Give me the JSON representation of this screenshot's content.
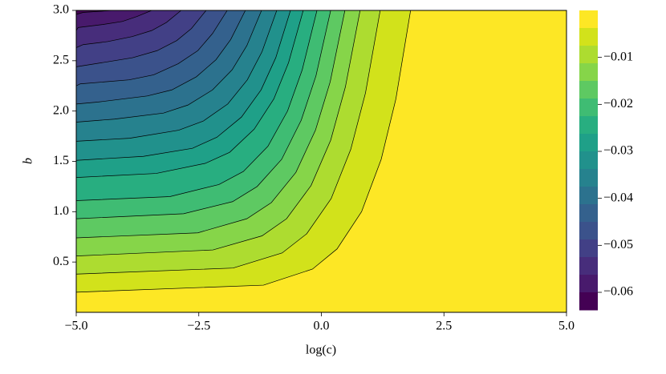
{
  "chart_data": {
    "type": "contour",
    "xlabel": "log(c)",
    "ylabel": "b",
    "xlim": [
      -5,
      5
    ],
    "ylim": [
      0,
      3
    ],
    "xticks": [
      {
        "value": -5,
        "label": "−5.0"
      },
      {
        "value": -2.5,
        "label": "−2.5"
      },
      {
        "value": 0,
        "label": "0.0"
      },
      2.5,
      {
        "value": 5,
        "label": "5.0"
      }
    ],
    "yticks": [
      0.5,
      {
        "value": 1,
        "label": "1.0"
      },
      1.5,
      {
        "value": 2,
        "label": "2.0"
      },
      2.5,
      {
        "value": 3,
        "label": "3.0"
      }
    ],
    "levels": [
      0,
      -0.00375,
      -0.0075,
      -0.01125,
      -0.015,
      -0.01875,
      -0.0225,
      -0.02625,
      -0.03,
      -0.03375,
      -0.0375,
      -0.04125,
      -0.045,
      -0.04875,
      -0.0525,
      -0.05625,
      -0.06,
      -0.06375
    ],
    "colors": [
      "#fde725",
      "#d2e21b",
      "#addc30",
      "#86d549",
      "#5ec962",
      "#3fbc73",
      "#28ae80",
      "#1fa088",
      "#21918c",
      "#26828e",
      "#2c728e",
      "#34618d",
      "#3b528b",
      "#424086",
      "#472d7b",
      "#481a6c",
      "#440154"
    ],
    "contours": [
      {
        "x": [
          -5,
          -1.18,
          -0.18,
          0.32,
          0.82,
          1.22,
          1.52,
          1.82
        ],
        "y": [
          0.2,
          0.27,
          0.43,
          0.63,
          1.0,
          1.52,
          2.12,
          3
        ]
      },
      {
        "x": [
          -5,
          -1.8,
          -0.8,
          -0.3,
          0.2,
          0.6,
          0.9,
          1.2
        ],
        "y": [
          0.38,
          0.44,
          0.59,
          0.78,
          1.13,
          1.62,
          2.18,
          3
        ]
      },
      {
        "x": [
          -5,
          -2.21,
          -1.21,
          -0.71,
          -0.21,
          0.19,
          0.49,
          0.79
        ],
        "y": [
          0.56,
          0.62,
          0.76,
          0.93,
          1.26,
          1.71,
          2.24,
          3
        ]
      },
      {
        "x": [
          -5,
          -2.52,
          -1.52,
          -1.02,
          -0.52,
          -0.12,
          0.18,
          0.48
        ],
        "y": [
          0.74,
          0.79,
          0.93,
          1.09,
          1.39,
          1.81,
          2.29,
          3
        ]
      },
      {
        "x": [
          -5,
          -2.81,
          -1.81,
          -1.31,
          -0.81,
          -0.41,
          -0.11,
          0.19
        ],
        "y": [
          0.93,
          0.98,
          1.1,
          1.25,
          1.52,
          1.91,
          2.35,
          3
        ]
      },
      {
        "x": [
          -5,
          -3.09,
          -2.09,
          -1.59,
          -1.09,
          -0.69,
          -0.39,
          -0.09
        ],
        "y": [
          1.11,
          1.15,
          1.27,
          1.4,
          1.65,
          2.0,
          2.41,
          3
        ]
      },
      {
        "x": [
          -5,
          -3.37,
          -2.37,
          -1.87,
          -1.37,
          -0.97,
          -0.67,
          -0.37
        ],
        "y": [
          1.34,
          1.38,
          1.48,
          1.59,
          1.82,
          2.12,
          2.48,
          3
        ]
      },
      {
        "x": [
          -5,
          -3.63,
          -2.63,
          -2.13,
          -1.63,
          -1.23,
          -0.93,
          -0.63
        ],
        "y": [
          1.51,
          1.55,
          1.63,
          1.74,
          1.94,
          2.21,
          2.53,
          3
        ]
      },
      {
        "x": [
          -5,
          -3.91,
          -2.91,
          -2.41,
          -1.91,
          -1.51,
          -1.21,
          -0.91
        ],
        "y": [
          1.7,
          1.73,
          1.81,
          1.9,
          2.07,
          2.31,
          2.59,
          3
        ]
      },
      {
        "x": [
          -5,
          -4.22,
          -3.22,
          -2.72,
          -2.22,
          -1.82,
          -1.52,
          -1.22
        ],
        "y": [
          1.89,
          1.92,
          1.98,
          2.06,
          2.21,
          2.41,
          2.65,
          3
        ]
      },
      {
        "x": [
          -5,
          -4.55,
          -3.55,
          -3.05,
          -2.55,
          -2.15,
          -1.85,
          -1.55
        ],
        "y": [
          2.07,
          2.09,
          2.15,
          2.21,
          2.34,
          2.51,
          2.71,
          3
        ]
      },
      {
        "x": [
          -5,
          -4.92,
          -3.92,
          -3.42,
          -2.92,
          -2.52,
          -2.22,
          -1.92
        ],
        "y": [
          2.25,
          2.27,
          2.31,
          2.36,
          2.47,
          2.6,
          2.77,
          3
        ]
      },
      {
        "x": [
          -5,
          -4.35,
          -3.85,
          -3.35,
          -2.95,
          -2.65,
          -2.35
        ],
        "y": [
          2.44,
          2.49,
          2.53,
          2.6,
          2.7,
          2.82,
          3
        ]
      },
      {
        "x": [
          -5,
          -4.86,
          -4.36,
          -3.86,
          -3.46,
          -3.16,
          -2.86
        ],
        "y": [
          2.63,
          2.66,
          2.69,
          2.74,
          2.8,
          2.88,
          3
        ]
      },
      {
        "x": [
          -5,
          -4.96,
          -4.46,
          -4.06,
          -3.76,
          -3.46
        ],
        "y": [
          2.8,
          2.83,
          2.86,
          2.89,
          2.94,
          3
        ]
      },
      {
        "x": [
          -5,
          -4.86,
          -4.56,
          -4.26
        ],
        "y": [
          2.96,
          2.98,
          2.99,
          3
        ]
      }
    ],
    "colorbar": {
      "ticks": [
        {
          "value": -0.01,
          "label": "−0.01"
        },
        {
          "value": -0.02,
          "label": "−0.02"
        },
        {
          "value": -0.03,
          "label": "−0.03"
        },
        {
          "value": -0.04,
          "label": "−0.04"
        },
        {
          "value": -0.05,
          "label": "−0.05"
        },
        {
          "value": -0.06,
          "label": "−0.06"
        }
      ]
    }
  }
}
